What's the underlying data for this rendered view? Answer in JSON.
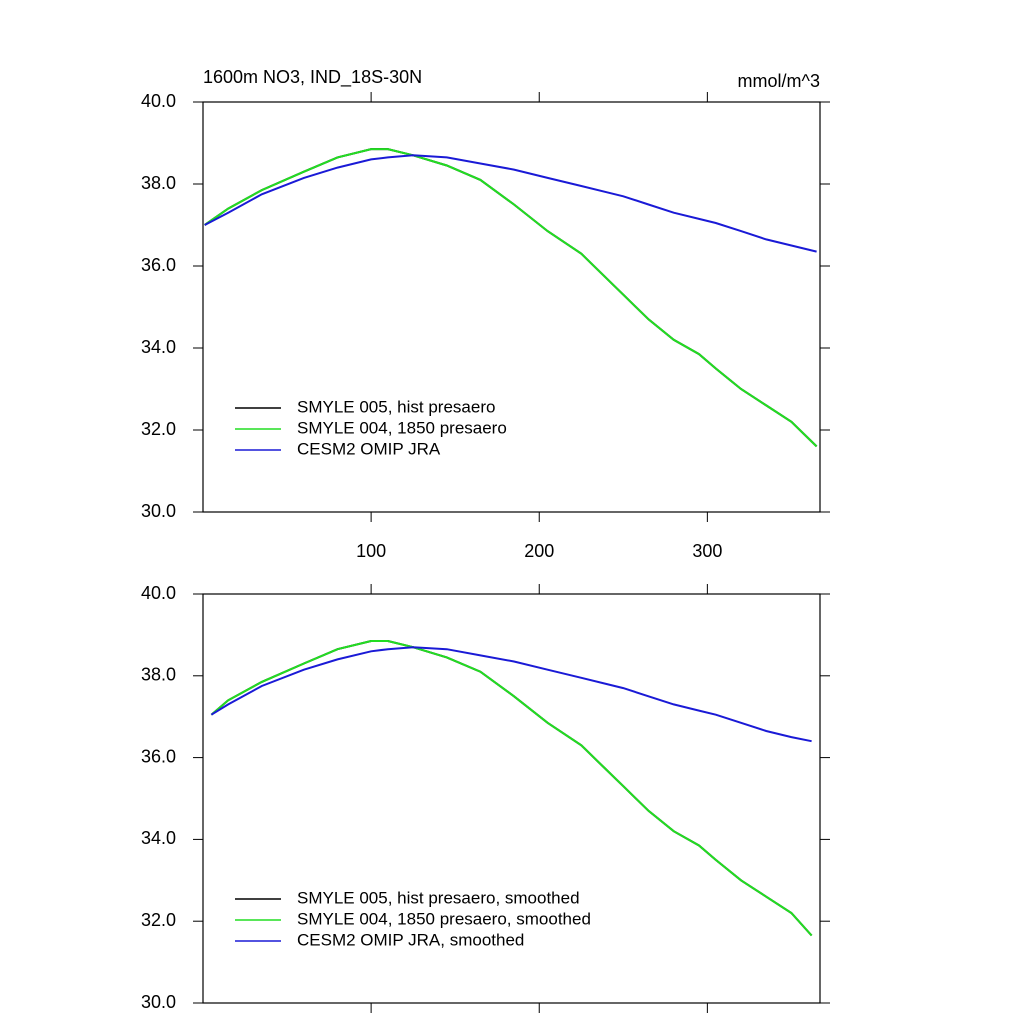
{
  "chart_data": [
    {
      "type": "line",
      "title": "1600m NO3, IND_18S-30N",
      "units": "mmol/m^3",
      "xlim": [
        0,
        367
      ],
      "xticks": [
        100,
        200,
        300
      ],
      "ylim": [
        30,
        40
      ],
      "yticks": [
        {
          "value": 30,
          "label": "30.0"
        },
        {
          "value": 32,
          "label": "32.0"
        },
        {
          "value": 34,
          "label": "34.0"
        },
        {
          "value": 36,
          "label": "36.0"
        },
        {
          "value": 38,
          "label": "38.0"
        },
        {
          "value": 40,
          "label": "40.0"
        }
      ],
      "legend": "lower left",
      "x": [
        1,
        15,
        35,
        60,
        80,
        100,
        110,
        125,
        145,
        165,
        185,
        205,
        225,
        240,
        250,
        265,
        280,
        295,
        305,
        320,
        335,
        350,
        365
      ],
      "series": [
        {
          "name": "SMYLE 005, hist presaero",
          "color": "#000000",
          "values": [
            37.0,
            37.4,
            37.85,
            38.3,
            38.65,
            38.85,
            38.85,
            38.7,
            38.45,
            38.1,
            37.5,
            36.85,
            36.3,
            35.7,
            35.3,
            34.7,
            34.2,
            33.85,
            33.5,
            33.0,
            32.6,
            32.2,
            31.6
          ]
        },
        {
          "name": "SMYLE 004, 1850 presaero",
          "color": "#22dd22",
          "values": [
            37.0,
            37.4,
            37.85,
            38.3,
            38.65,
            38.85,
            38.85,
            38.7,
            38.45,
            38.1,
            37.5,
            36.85,
            36.3,
            35.7,
            35.3,
            34.7,
            34.2,
            33.85,
            33.5,
            33.0,
            32.6,
            32.2,
            31.6
          ]
        },
        {
          "name": "CESM2 OMIP JRA",
          "color": "#1a1ad6",
          "values": [
            37.0,
            37.3,
            37.75,
            38.15,
            38.4,
            38.6,
            38.65,
            38.7,
            38.65,
            38.5,
            38.35,
            38.15,
            37.95,
            37.8,
            37.7,
            37.5,
            37.3,
            37.15,
            37.05,
            36.85,
            36.65,
            36.5,
            36.35
          ]
        }
      ]
    },
    {
      "type": "line",
      "xlim": [
        0,
        367
      ],
      "ylim": [
        30,
        40
      ],
      "yticks": [
        {
          "value": 30,
          "label": "30.0"
        },
        {
          "value": 32,
          "label": "32.0"
        },
        {
          "value": 34,
          "label": "34.0"
        },
        {
          "value": 36,
          "label": "36.0"
        },
        {
          "value": 38,
          "label": "38.0"
        },
        {
          "value": 40,
          "label": "40.0"
        }
      ],
      "legend": "lower left",
      "x": [
        5,
        15,
        35,
        60,
        80,
        100,
        110,
        125,
        145,
        165,
        185,
        205,
        225,
        240,
        250,
        265,
        280,
        295,
        305,
        320,
        335,
        350,
        362
      ],
      "series": [
        {
          "name": "SMYLE 005, hist presaero, smoothed",
          "color": "#000000",
          "values": [
            37.05,
            37.4,
            37.85,
            38.3,
            38.65,
            38.85,
            38.85,
            38.7,
            38.45,
            38.1,
            37.5,
            36.85,
            36.3,
            35.7,
            35.3,
            34.7,
            34.2,
            33.85,
            33.5,
            33.0,
            32.6,
            32.2,
            31.65
          ]
        },
        {
          "name": "SMYLE 004, 1850 presaero, smoothed",
          "color": "#22dd22",
          "values": [
            37.05,
            37.4,
            37.85,
            38.3,
            38.65,
            38.85,
            38.85,
            38.7,
            38.45,
            38.1,
            37.5,
            36.85,
            36.3,
            35.7,
            35.3,
            34.7,
            34.2,
            33.85,
            33.5,
            33.0,
            32.6,
            32.2,
            31.65
          ]
        },
        {
          "name": "CESM2 OMIP JRA, smoothed",
          "color": "#1a1ad6",
          "values": [
            37.05,
            37.3,
            37.75,
            38.15,
            38.4,
            38.6,
            38.65,
            38.7,
            38.65,
            38.5,
            38.35,
            38.15,
            37.95,
            37.8,
            37.7,
            37.5,
            37.3,
            37.15,
            37.05,
            36.85,
            36.65,
            36.5,
            36.4
          ]
        }
      ]
    }
  ]
}
